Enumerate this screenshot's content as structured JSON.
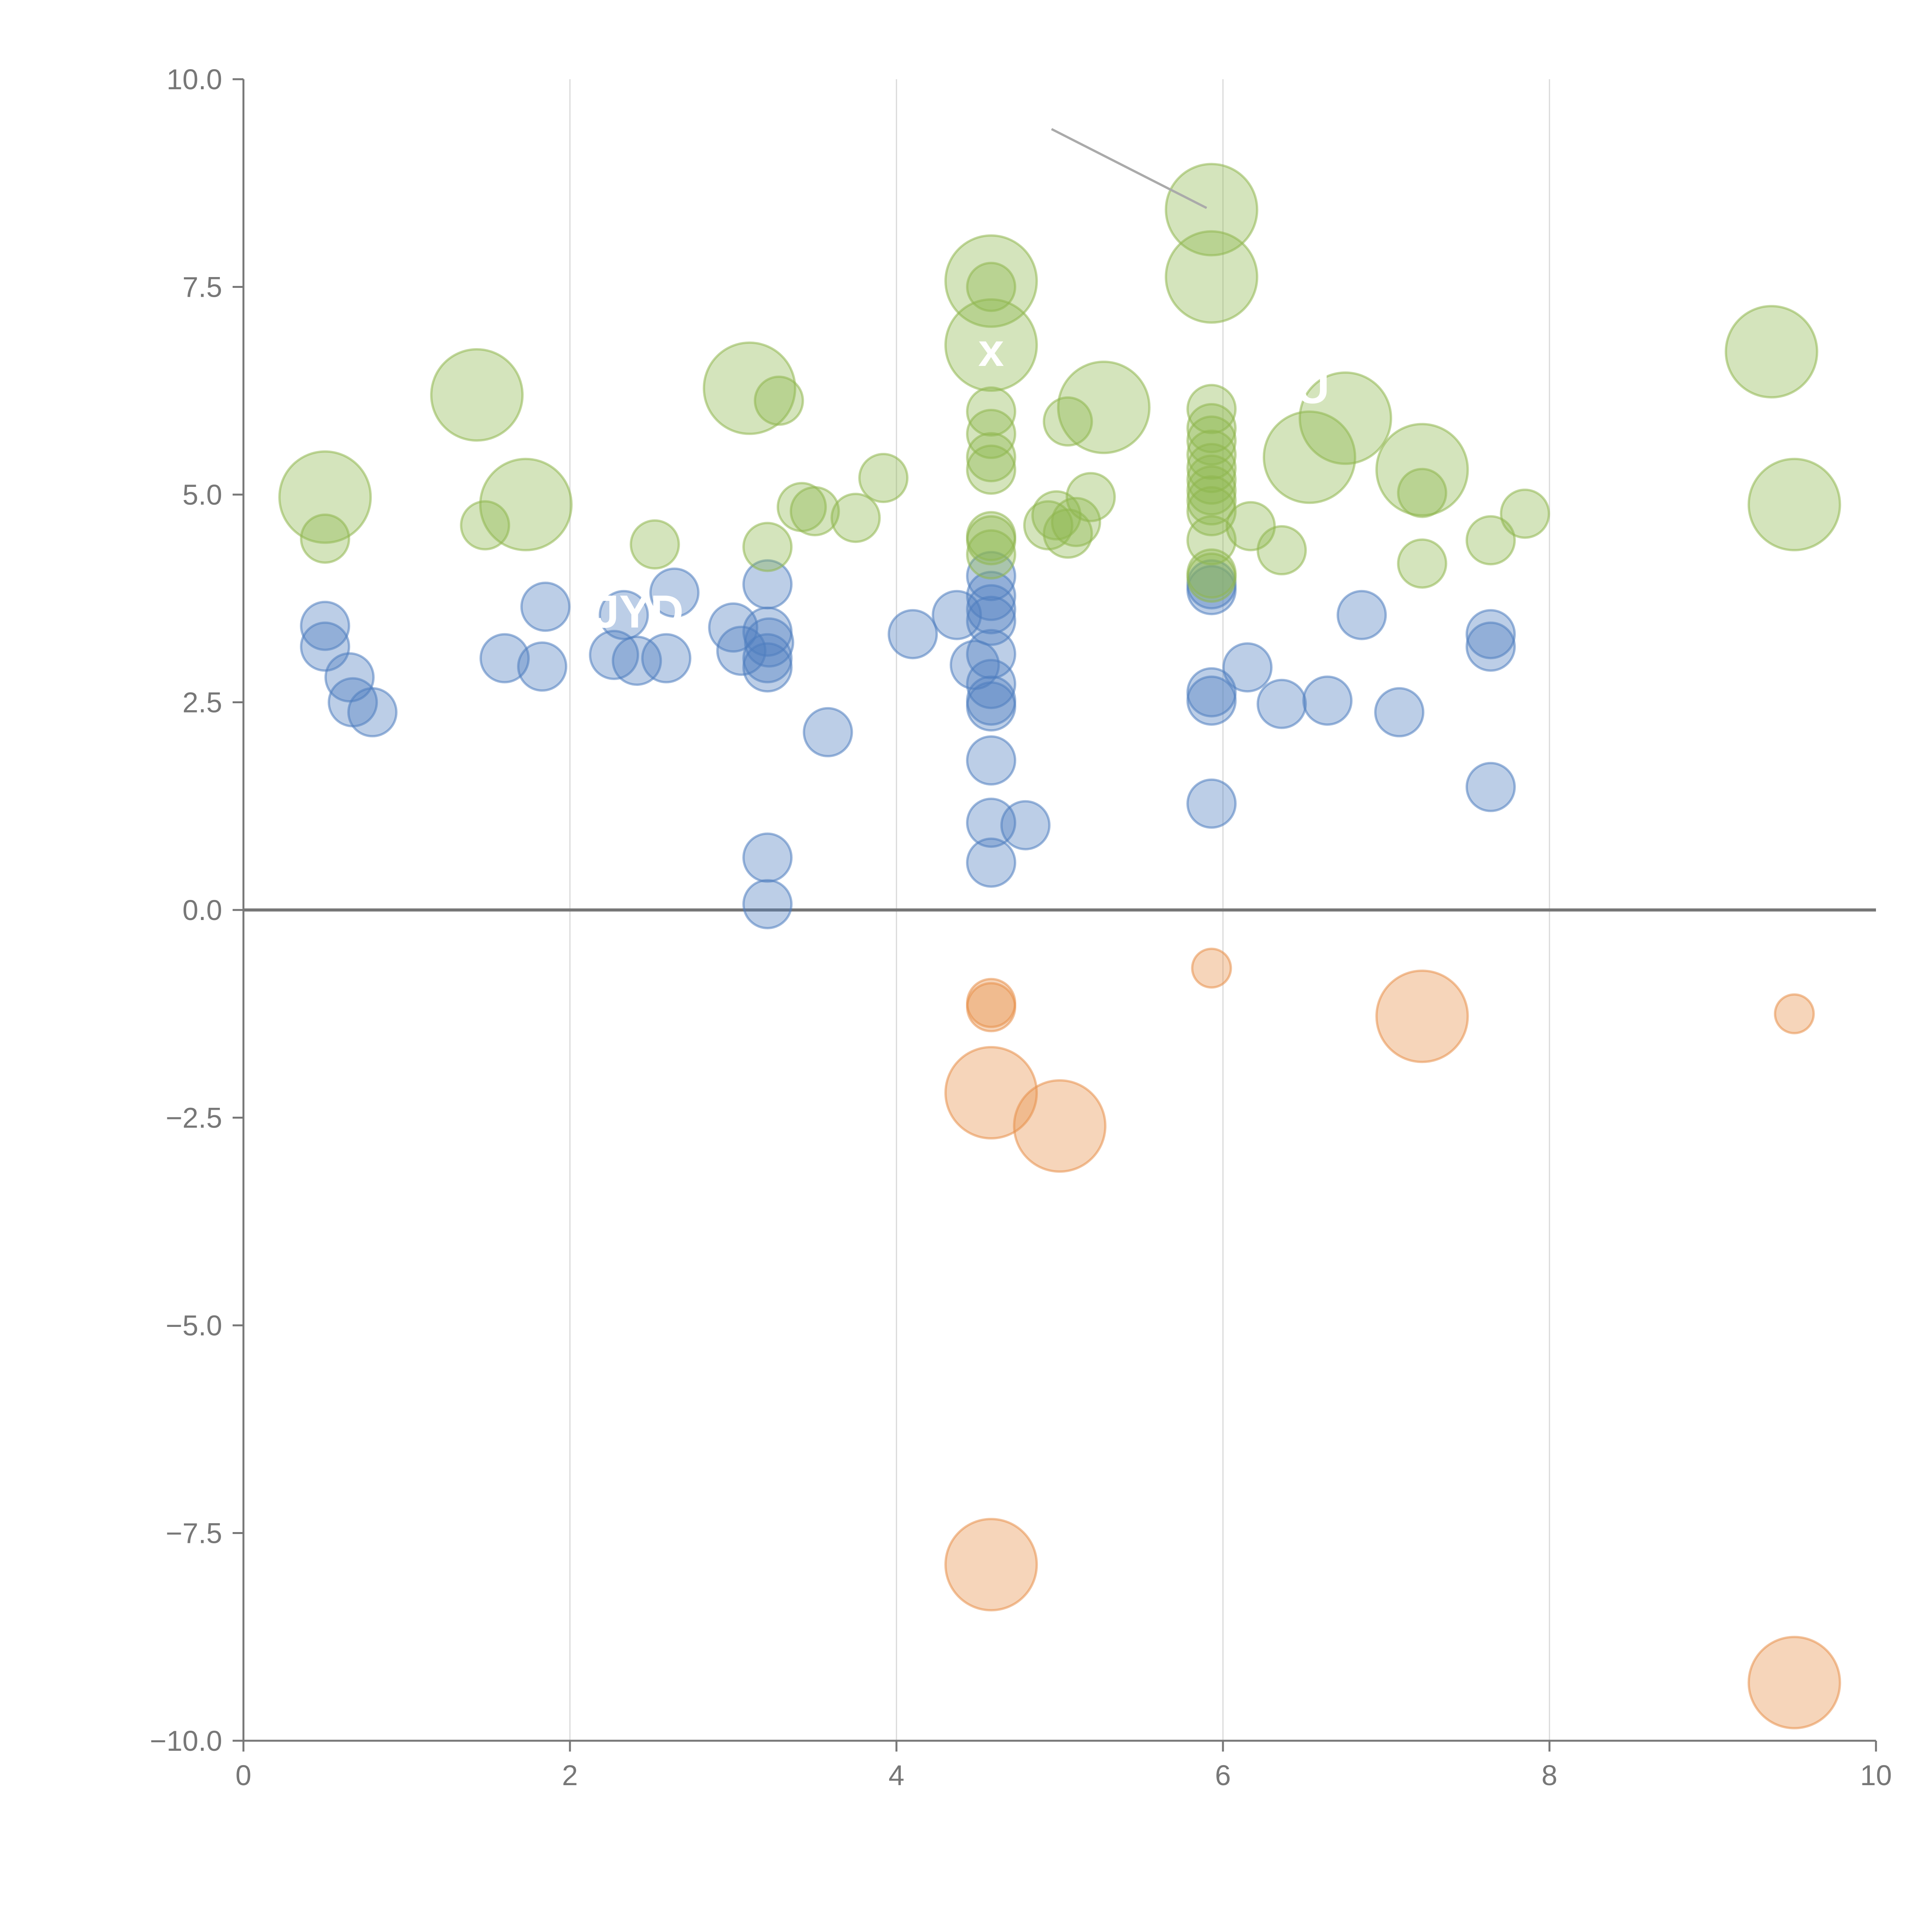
{
  "chart_data": {
    "type": "scatter",
    "title": "",
    "xlabel": "",
    "ylabel": "",
    "xlim": [
      0,
      10
    ],
    "ylim": [
      -10,
      10
    ],
    "x_ticks": [
      0,
      2,
      4,
      6,
      8,
      10
    ],
    "x_tick_labels": [
      "0",
      "2",
      "4",
      "6",
      "8",
      "10"
    ],
    "y_ticks": [
      -10,
      -7.5,
      -5,
      -2.5,
      0,
      2.5,
      5,
      7.5,
      10
    ],
    "y_tick_labels": [
      "−10.0",
      "−7.5",
      "−5.0",
      "−2.5",
      "0.0",
      "2.5",
      "5.0",
      "7.5",
      "10.0"
    ],
    "vertical_grid": true,
    "zero_line": true,
    "colors": {
      "blue": "#4f7dc0",
      "green": "#8fb74e",
      "orange": "#e8904a",
      "axis": "#777777",
      "grid": "#d8d8d8",
      "zero_line": "#777777"
    },
    "series": [
      {
        "name": "blue",
        "points": [
          {
            "x": 0.5,
            "y": 3.42,
            "s": 1
          },
          {
            "x": 0.5,
            "y": 3.17,
            "s": 1
          },
          {
            "x": 0.65,
            "y": 2.8,
            "s": 1
          },
          {
            "x": 0.67,
            "y": 2.5,
            "s": 1
          },
          {
            "x": 0.79,
            "y": 2.38,
            "s": 1
          },
          {
            "x": 1.6,
            "y": 3.03,
            "s": 1
          },
          {
            "x": 1.83,
            "y": 2.93,
            "s": 1
          },
          {
            "x": 1.85,
            "y": 3.65,
            "s": 1
          },
          {
            "x": 2.27,
            "y": 3.07,
            "s": 1
          },
          {
            "x": 2.33,
            "y": 3.55,
            "s": 1
          },
          {
            "x": 2.41,
            "y": 3.0,
            "s": 1
          },
          {
            "x": 2.59,
            "y": 3.03,
            "s": 1
          },
          {
            "x": 2.64,
            "y": 3.82,
            "s": 1
          },
          {
            "x": 3.0,
            "y": 3.4,
            "s": 1
          },
          {
            "x": 3.05,
            "y": 3.12,
            "s": 1
          },
          {
            "x": 3.21,
            "y": 3.92,
            "s": 1
          },
          {
            "x": 3.21,
            "y": 3.35,
            "s": 1
          },
          {
            "x": 3.22,
            "y": 3.22,
            "s": 1
          },
          {
            "x": 3.21,
            "y": 3.03,
            "s": 1
          },
          {
            "x": 3.21,
            "y": 2.92,
            "s": 1
          },
          {
            "x": 3.21,
            "y": 0.63,
            "s": 1
          },
          {
            "x": 3.21,
            "y": 0.07,
            "s": 1
          },
          {
            "x": 3.58,
            "y": 2.14,
            "s": 1
          },
          {
            "x": 4.1,
            "y": 3.32,
            "s": 1
          },
          {
            "x": 4.37,
            "y": 3.55,
            "s": 1
          },
          {
            "x": 4.48,
            "y": 2.95,
            "s": 1
          },
          {
            "x": 4.58,
            "y": 4.02,
            "s": 1
          },
          {
            "x": 4.58,
            "y": 3.78,
            "s": 1
          },
          {
            "x": 4.58,
            "y": 3.62,
            "s": 1
          },
          {
            "x": 4.58,
            "y": 3.48,
            "s": 1
          },
          {
            "x": 4.58,
            "y": 3.08,
            "s": 1
          },
          {
            "x": 4.58,
            "y": 2.72,
            "s": 1
          },
          {
            "x": 4.58,
            "y": 2.52,
            "s": 1
          },
          {
            "x": 4.58,
            "y": 2.45,
            "s": 1
          },
          {
            "x": 4.58,
            "y": 1.8,
            "s": 1
          },
          {
            "x": 4.58,
            "y": 1.05,
            "s": 1
          },
          {
            "x": 4.58,
            "y": 0.57,
            "s": 1
          },
          {
            "x": 4.79,
            "y": 1.02,
            "s": 1
          },
          {
            "x": 5.93,
            "y": 3.92,
            "s": 1
          },
          {
            "x": 5.93,
            "y": 3.85,
            "s": 1
          },
          {
            "x": 5.93,
            "y": 2.62,
            "s": 1
          },
          {
            "x": 5.93,
            "y": 2.52,
            "s": 1
          },
          {
            "x": 5.93,
            "y": 1.28,
            "s": 1
          },
          {
            "x": 6.15,
            "y": 2.92,
            "s": 1
          },
          {
            "x": 6.36,
            "y": 2.48,
            "s": 1
          },
          {
            "x": 6.64,
            "y": 2.52,
            "s": 1
          },
          {
            "x": 6.85,
            "y": 3.55,
            "s": 1
          },
          {
            "x": 7.08,
            "y": 2.38,
            "s": 1
          },
          {
            "x": 7.64,
            "y": 3.32,
            "s": 1
          },
          {
            "x": 7.64,
            "y": 3.17,
            "s": 1
          },
          {
            "x": 7.64,
            "y": 1.48,
            "s": 1
          }
        ]
      },
      {
        "name": "green",
        "points": [
          {
            "x": 0.5,
            "y": 4.97,
            "s": 2
          },
          {
            "x": 0.5,
            "y": 4.47,
            "s": 1
          },
          {
            "x": 1.43,
            "y": 6.2,
            "s": 2
          },
          {
            "x": 1.48,
            "y": 4.63,
            "s": 1
          },
          {
            "x": 1.73,
            "y": 4.88,
            "s": 2
          },
          {
            "x": 2.52,
            "y": 4.4,
            "s": 1
          },
          {
            "x": 3.1,
            "y": 6.28,
            "s": 2
          },
          {
            "x": 3.21,
            "y": 4.37,
            "s": 1
          },
          {
            "x": 3.28,
            "y": 6.13,
            "s": 1
          },
          {
            "x": 3.42,
            "y": 4.85,
            "s": 1
          },
          {
            "x": 3.5,
            "y": 4.8,
            "s": 1
          },
          {
            "x": 3.75,
            "y": 4.72,
            "s": 1
          },
          {
            "x": 3.92,
            "y": 5.2,
            "s": 1
          },
          {
            "x": 4.58,
            "y": 7.57,
            "s": 2
          },
          {
            "x": 4.58,
            "y": 7.5,
            "s": 1
          },
          {
            "x": 4.58,
            "y": 6.8,
            "s": 2
          },
          {
            "x": 4.58,
            "y": 6.0,
            "s": 1
          },
          {
            "x": 4.58,
            "y": 5.73,
            "s": 1
          },
          {
            "x": 4.58,
            "y": 5.45,
            "s": 1
          },
          {
            "x": 4.58,
            "y": 5.3,
            "s": 1
          },
          {
            "x": 4.58,
            "y": 4.5,
            "s": 1
          },
          {
            "x": 4.58,
            "y": 4.45,
            "s": 1
          },
          {
            "x": 4.58,
            "y": 4.28,
            "s": 1
          },
          {
            "x": 4.93,
            "y": 4.63,
            "s": 1
          },
          {
            "x": 4.98,
            "y": 4.75,
            "s": 1
          },
          {
            "x": 5.05,
            "y": 5.88,
            "s": 1
          },
          {
            "x": 5.05,
            "y": 4.53,
            "s": 1
          },
          {
            "x": 5.1,
            "y": 4.67,
            "s": 1
          },
          {
            "x": 5.19,
            "y": 4.97,
            "s": 1
          },
          {
            "x": 5.27,
            "y": 6.05,
            "s": 2
          },
          {
            "x": 5.93,
            "y": 8.43,
            "s": 2
          },
          {
            "x": 5.93,
            "y": 7.62,
            "s": 2
          },
          {
            "x": 5.93,
            "y": 6.03,
            "s": 1
          },
          {
            "x": 5.93,
            "y": 5.8,
            "s": 1
          },
          {
            "x": 5.93,
            "y": 5.65,
            "s": 1
          },
          {
            "x": 5.93,
            "y": 5.48,
            "s": 1
          },
          {
            "x": 5.93,
            "y": 5.32,
            "s": 1
          },
          {
            "x": 5.93,
            "y": 5.18,
            "s": 1
          },
          {
            "x": 5.93,
            "y": 5.05,
            "s": 1
          },
          {
            "x": 5.93,
            "y": 4.93,
            "s": 1
          },
          {
            "x": 5.93,
            "y": 4.8,
            "s": 1
          },
          {
            "x": 5.93,
            "y": 4.45,
            "s": 1
          },
          {
            "x": 5.93,
            "y": 4.05,
            "s": 1
          },
          {
            "x": 5.93,
            "y": 4.0,
            "s": 1
          },
          {
            "x": 6.17,
            "y": 4.62,
            "s": 1
          },
          {
            "x": 6.36,
            "y": 4.33,
            "s": 1
          },
          {
            "x": 6.53,
            "y": 5.45,
            "s": 2
          },
          {
            "x": 6.75,
            "y": 5.92,
            "s": 2
          },
          {
            "x": 7.22,
            "y": 5.3,
            "s": 2
          },
          {
            "x": 7.22,
            "y": 5.02,
            "s": 1
          },
          {
            "x": 7.22,
            "y": 4.17,
            "s": 1
          },
          {
            "x": 7.64,
            "y": 4.45,
            "s": 1
          },
          {
            "x": 7.85,
            "y": 4.77,
            "s": 1
          },
          {
            "x": 9.36,
            "y": 6.72,
            "s": 2
          },
          {
            "x": 9.5,
            "y": 4.88,
            "s": 2
          }
        ]
      },
      {
        "name": "orange",
        "points": [
          {
            "x": 4.58,
            "y": -1.12,
            "s": 1
          },
          {
            "x": 4.58,
            "y": -1.17,
            "s": 1
          },
          {
            "x": 4.58,
            "y": -2.2,
            "s": 2
          },
          {
            "x": 4.58,
            "y": -7.88,
            "s": 2
          },
          {
            "x": 5.0,
            "y": -2.6,
            "s": 2
          },
          {
            "x": 5.93,
            "y": -0.7,
            "s": 0.75
          },
          {
            "x": 7.22,
            "y": -1.28,
            "s": 2
          },
          {
            "x": 9.5,
            "y": -1.25,
            "s": 0.75
          },
          {
            "x": 9.5,
            "y": -9.3,
            "s": 2
          }
        ]
      }
    ],
    "annotation_lines": [
      {
        "x1": 4.95,
        "y1": 9.4,
        "x2": 5.9,
        "y2": 8.45,
        "color": "#aaaaaa"
      }
    ],
    "point_labels": [
      {
        "text": "x",
        "x": 4.58,
        "y": 6.55
      },
      {
        "text": "U",
        "x": 6.55,
        "y": 6.1
      },
      {
        "text": "JYD",
        "x": 2.42,
        "y": 3.4
      }
    ]
  }
}
